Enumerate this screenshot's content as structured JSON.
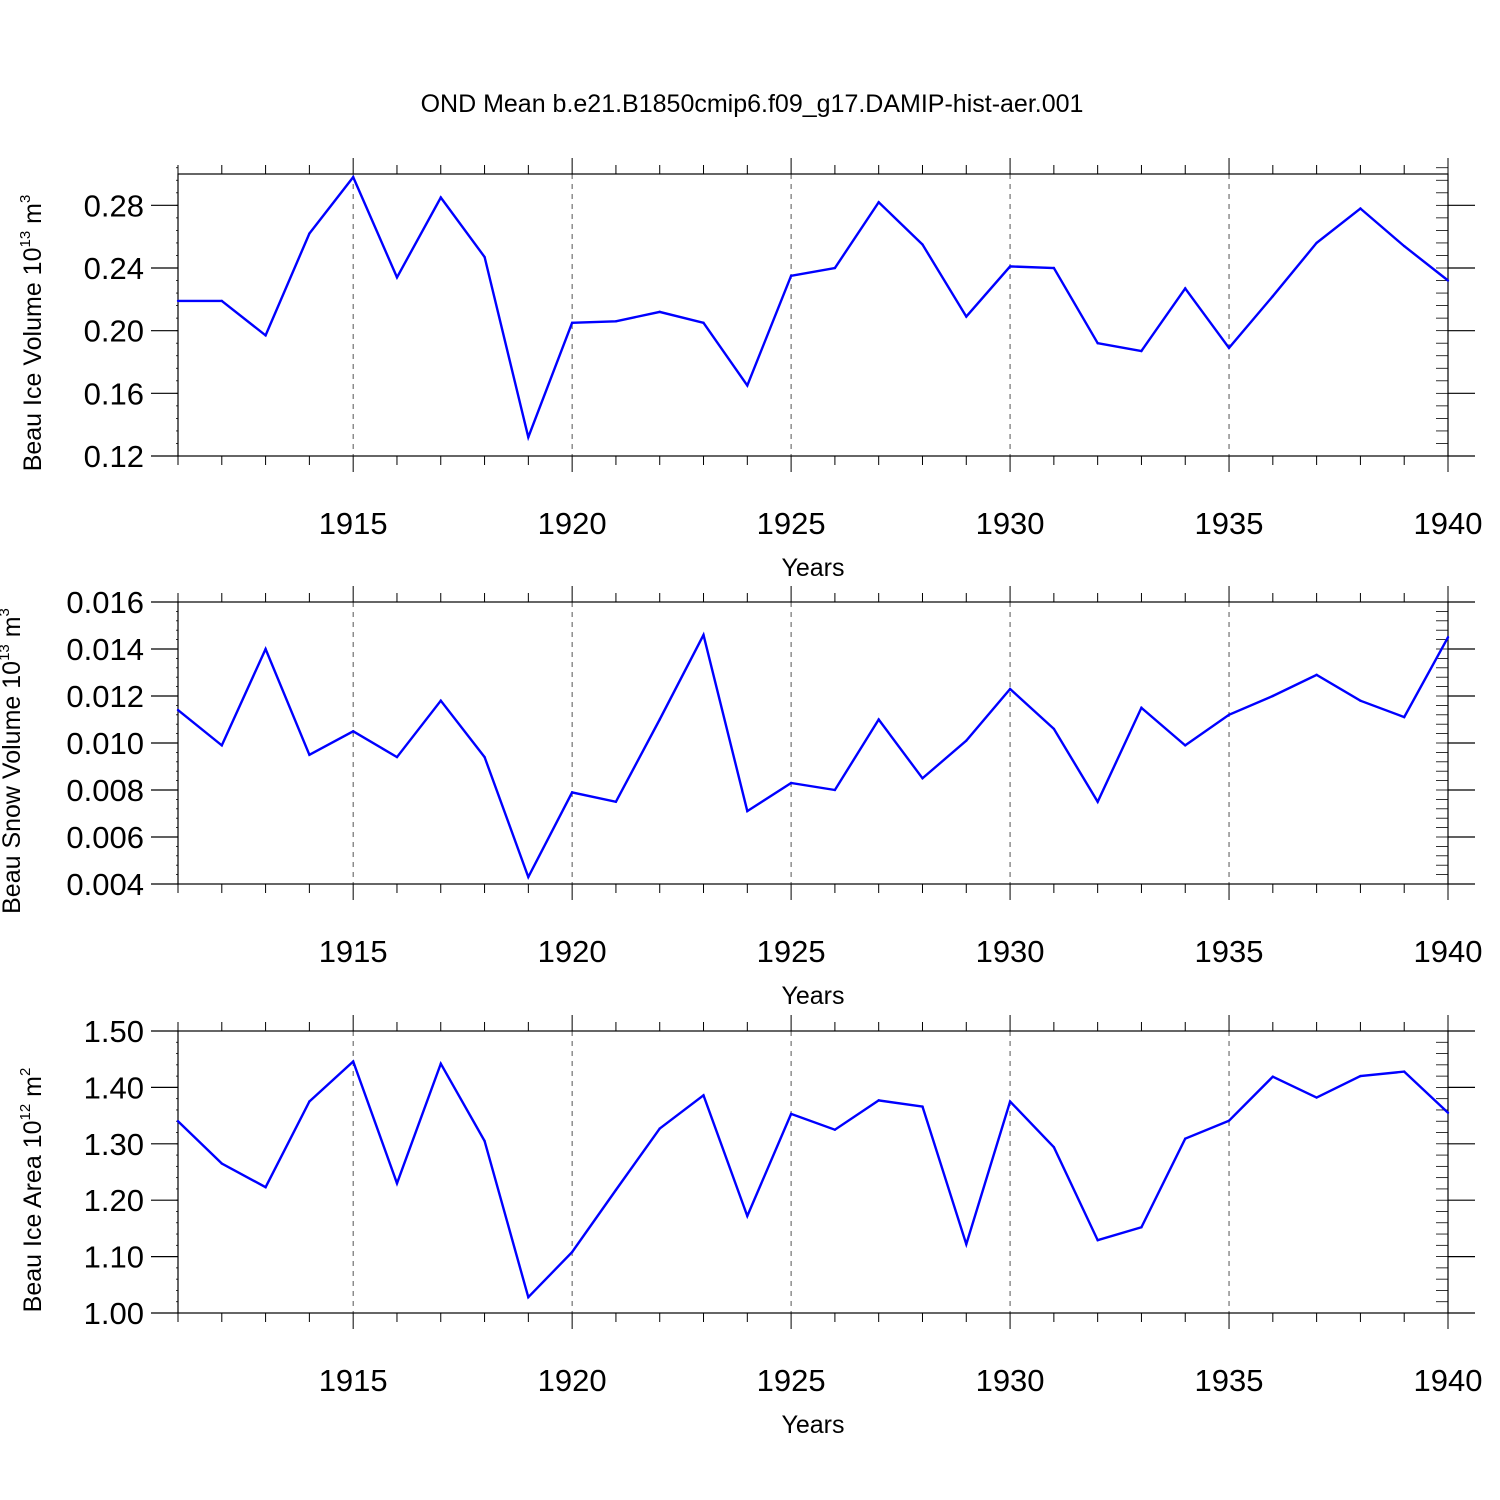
{
  "title": "OND Mean b.e21.B1850cmip6.f09_g17.DAMIP-hist-aer.001",
  "colors": {
    "line": "#0000ff",
    "axis": "#000000",
    "grid": "#555555"
  },
  "chart_data": [
    {
      "type": "line",
      "ylabel_main": "Beau Ice Volume 10",
      "ylabel_exp": "13",
      "ylabel_unit": " m",
      "ylabel_unit_exp": "3",
      "xlabel": "Years",
      "xlim": [
        1911,
        1940
      ],
      "ylim": [
        0.12,
        0.3
      ],
      "yticks": [
        0.12,
        0.16,
        0.2,
        0.24,
        0.28
      ],
      "ytick_labels": [
        "0.12",
        "0.16",
        "0.20",
        "0.24",
        "0.28"
      ],
      "yminor_step": 0.008,
      "xticks": [
        1915,
        1920,
        1925,
        1930,
        1935,
        1940
      ],
      "xtick_labels": [
        "1915",
        "1920",
        "1925",
        "1930",
        "1935",
        "1940"
      ],
      "x": [
        1911,
        1912,
        1913,
        1914,
        1915,
        1916,
        1917,
        1918,
        1919,
        1920,
        1921,
        1922,
        1923,
        1924,
        1925,
        1926,
        1927,
        1928,
        1929,
        1930,
        1931,
        1932,
        1933,
        1934,
        1935,
        1936,
        1937,
        1938,
        1939,
        1940
      ],
      "values": [
        0.219,
        0.219,
        0.197,
        0.262,
        0.298,
        0.234,
        0.285,
        0.247,
        0.132,
        0.205,
        0.206,
        0.212,
        0.205,
        0.165,
        0.235,
        0.24,
        0.282,
        0.255,
        0.209,
        0.241,
        0.24,
        0.192,
        0.187,
        0.227,
        0.189,
        0.222,
        0.256,
        0.278,
        0.254,
        0.232
      ]
    },
    {
      "type": "line",
      "ylabel_main": "Beau Snow Volume 10",
      "ylabel_exp": "13",
      "ylabel_unit": " m",
      "ylabel_unit_exp": "3",
      "xlabel": "Years",
      "xlim": [
        1911,
        1940
      ],
      "ylim": [
        0.004,
        0.016
      ],
      "yticks": [
        0.004,
        0.006,
        0.008,
        0.01,
        0.012,
        0.014,
        0.016
      ],
      "ytick_labels": [
        "0.004",
        "0.006",
        "0.008",
        "0.010",
        "0.012",
        "0.014",
        "0.016"
      ],
      "yminor_step": 0.0004,
      "xticks": [
        1915,
        1920,
        1925,
        1930,
        1935,
        1940
      ],
      "xtick_labels": [
        "1915",
        "1920",
        "1925",
        "1930",
        "1935",
        "1940"
      ],
      "x": [
        1911,
        1912,
        1913,
        1914,
        1915,
        1916,
        1917,
        1918,
        1919,
        1920,
        1921,
        1922,
        1923,
        1924,
        1925,
        1926,
        1927,
        1928,
        1929,
        1930,
        1931,
        1932,
        1933,
        1934,
        1935,
        1936,
        1937,
        1938,
        1939,
        1940
      ],
      "values": [
        0.0114,
        0.0099,
        0.014,
        0.0095,
        0.0105,
        0.0094,
        0.0118,
        0.0094,
        0.0043,
        0.0079,
        0.0075,
        0.011,
        0.0146,
        0.0071,
        0.0083,
        0.008,
        0.011,
        0.0085,
        0.0101,
        0.0123,
        0.0106,
        0.0075,
        0.0115,
        0.0099,
        0.0112,
        0.012,
        0.0129,
        0.0118,
        0.0111,
        0.0145
      ]
    },
    {
      "type": "line",
      "ylabel_main": "Beau Ice Area 10",
      "ylabel_exp": "12",
      "ylabel_unit": " m",
      "ylabel_unit_exp": "2",
      "xlabel": "Years",
      "xlim": [
        1911,
        1940
      ],
      "ylim": [
        1.0,
        1.5
      ],
      "yticks": [
        1.0,
        1.1,
        1.2,
        1.3,
        1.4,
        1.5
      ],
      "ytick_labels": [
        "1.00",
        "1.10",
        "1.20",
        "1.30",
        "1.40",
        "1.50"
      ],
      "yminor_step": 0.02,
      "xticks": [
        1915,
        1920,
        1925,
        1930,
        1935,
        1940
      ],
      "xtick_labels": [
        "1915",
        "1920",
        "1925",
        "1930",
        "1935",
        "1940"
      ],
      "x": [
        1911,
        1912,
        1913,
        1914,
        1915,
        1916,
        1917,
        1918,
        1919,
        1920,
        1921,
        1922,
        1923,
        1924,
        1925,
        1926,
        1927,
        1928,
        1929,
        1930,
        1931,
        1932,
        1933,
        1934,
        1935,
        1936,
        1937,
        1938,
        1939,
        1940
      ],
      "values": [
        1.34,
        1.265,
        1.223,
        1.375,
        1.446,
        1.23,
        1.442,
        1.305,
        1.028,
        1.108,
        1.218,
        1.327,
        1.386,
        1.172,
        1.353,
        1.325,
        1.377,
        1.366,
        1.122,
        1.375,
        1.294,
        1.129,
        1.152,
        1.309,
        1.341,
        1.419,
        1.382,
        1.42,
        1.428,
        1.355
      ]
    }
  ]
}
